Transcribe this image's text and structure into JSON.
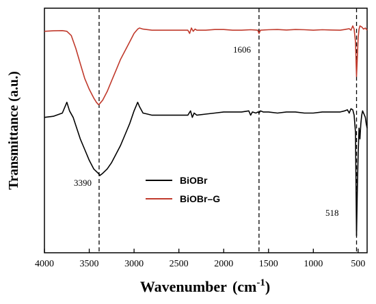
{
  "chart_data": {
    "type": "line",
    "title": "",
    "xlabel": "Wavenumber",
    "xlabel_unit_base": "(cm",
    "xlabel_unit_exp": "-1",
    "xlabel_unit_close": ")",
    "ylabel": "Transmittance (a.u.)",
    "xlim": [
      4000,
      400
    ],
    "x_reversed": true,
    "x_ticks": [
      4000,
      3500,
      3000,
      2500,
      2000,
      1500,
      1000,
      500
    ],
    "y_ticks_shown": false,
    "grid": false,
    "legend_position": "center-left",
    "series": [
      {
        "name": "BiOBr",
        "color": "#000000",
        "x": [
          4000,
          3900,
          3800,
          3750,
          3720,
          3680,
          3640,
          3600,
          3550,
          3500,
          3450,
          3400,
          3380,
          3350,
          3300,
          3250,
          3200,
          3150,
          3100,
          3050,
          3000,
          2960,
          2940,
          2900,
          2850,
          2800,
          2700,
          2600,
          2500,
          2400,
          2370,
          2350,
          2330,
          2300,
          2200,
          2100,
          2000,
          1900,
          1800,
          1720,
          1700,
          1680,
          1640,
          1620,
          1606,
          1590,
          1560,
          1500,
          1400,
          1300,
          1200,
          1100,
          1000,
          900,
          800,
          700,
          650,
          620,
          600,
          580,
          560,
          545,
          530,
          518,
          510,
          500,
          490,
          480,
          470,
          460,
          450,
          430,
          420,
          410,
          400
        ],
        "y": [
          0.55,
          0.555,
          0.57,
          0.62,
          0.58,
          0.55,
          0.5,
          0.45,
          0.4,
          0.35,
          0.31,
          0.29,
          0.28,
          0.29,
          0.31,
          0.34,
          0.38,
          0.42,
          0.47,
          0.52,
          0.58,
          0.62,
          0.6,
          0.57,
          0.565,
          0.56,
          0.56,
          0.56,
          0.56,
          0.56,
          0.58,
          0.55,
          0.57,
          0.56,
          0.565,
          0.57,
          0.575,
          0.575,
          0.575,
          0.58,
          0.56,
          0.575,
          0.57,
          0.575,
          0.57,
          0.58,
          0.575,
          0.575,
          0.57,
          0.575,
          0.575,
          0.57,
          0.57,
          0.575,
          0.575,
          0.575,
          0.58,
          0.585,
          0.57,
          0.59,
          0.585,
          0.56,
          0.48,
          0.0,
          0.2,
          0.38,
          0.5,
          0.45,
          0.52,
          0.56,
          0.58,
          0.56,
          0.55,
          0.52,
          0.5
        ]
      },
      {
        "name": "BiOBr–G",
        "color": "#c0392b",
        "x": [
          4000,
          3900,
          3800,
          3750,
          3700,
          3650,
          3600,
          3550,
          3500,
          3450,
          3420,
          3400,
          3390,
          3370,
          3350,
          3300,
          3250,
          3200,
          3150,
          3100,
          3050,
          3000,
          2960,
          2940,
          2900,
          2800,
          2700,
          2600,
          2500,
          2400,
          2380,
          2360,
          2340,
          2320,
          2300,
          2200,
          2100,
          2000,
          1900,
          1800,
          1700,
          1620,
          1606,
          1590,
          1500,
          1400,
          1300,
          1200,
          1100,
          1000,
          900,
          800,
          700,
          650,
          600,
          580,
          560,
          545,
          530,
          518,
          510,
          500,
          490,
          480,
          460,
          440,
          420,
          410,
          400
        ],
        "y": [
          0.95,
          0.952,
          0.953,
          0.95,
          0.93,
          0.87,
          0.8,
          0.73,
          0.68,
          0.64,
          0.62,
          0.61,
          0.61,
          0.62,
          0.63,
          0.67,
          0.72,
          0.77,
          0.82,
          0.86,
          0.9,
          0.94,
          0.96,
          0.965,
          0.96,
          0.955,
          0.955,
          0.955,
          0.955,
          0.955,
          0.94,
          0.965,
          0.95,
          0.96,
          0.955,
          0.955,
          0.958,
          0.958,
          0.955,
          0.955,
          0.957,
          0.955,
          0.94,
          0.955,
          0.957,
          0.958,
          0.956,
          0.958,
          0.957,
          0.955,
          0.957,
          0.956,
          0.955,
          0.958,
          0.962,
          0.955,
          0.975,
          0.96,
          0.9,
          0.74,
          0.82,
          0.92,
          0.96,
          0.975,
          0.97,
          0.96,
          0.965,
          0.96,
          0.955
        ]
      }
    ],
    "dashed_lines": [
      3390,
      1606,
      518
    ],
    "annotations": [
      {
        "text": "3390",
        "x": 3390
      },
      {
        "text": "1606",
        "x": 1606
      },
      {
        "text": "518",
        "x": 518
      }
    ]
  }
}
